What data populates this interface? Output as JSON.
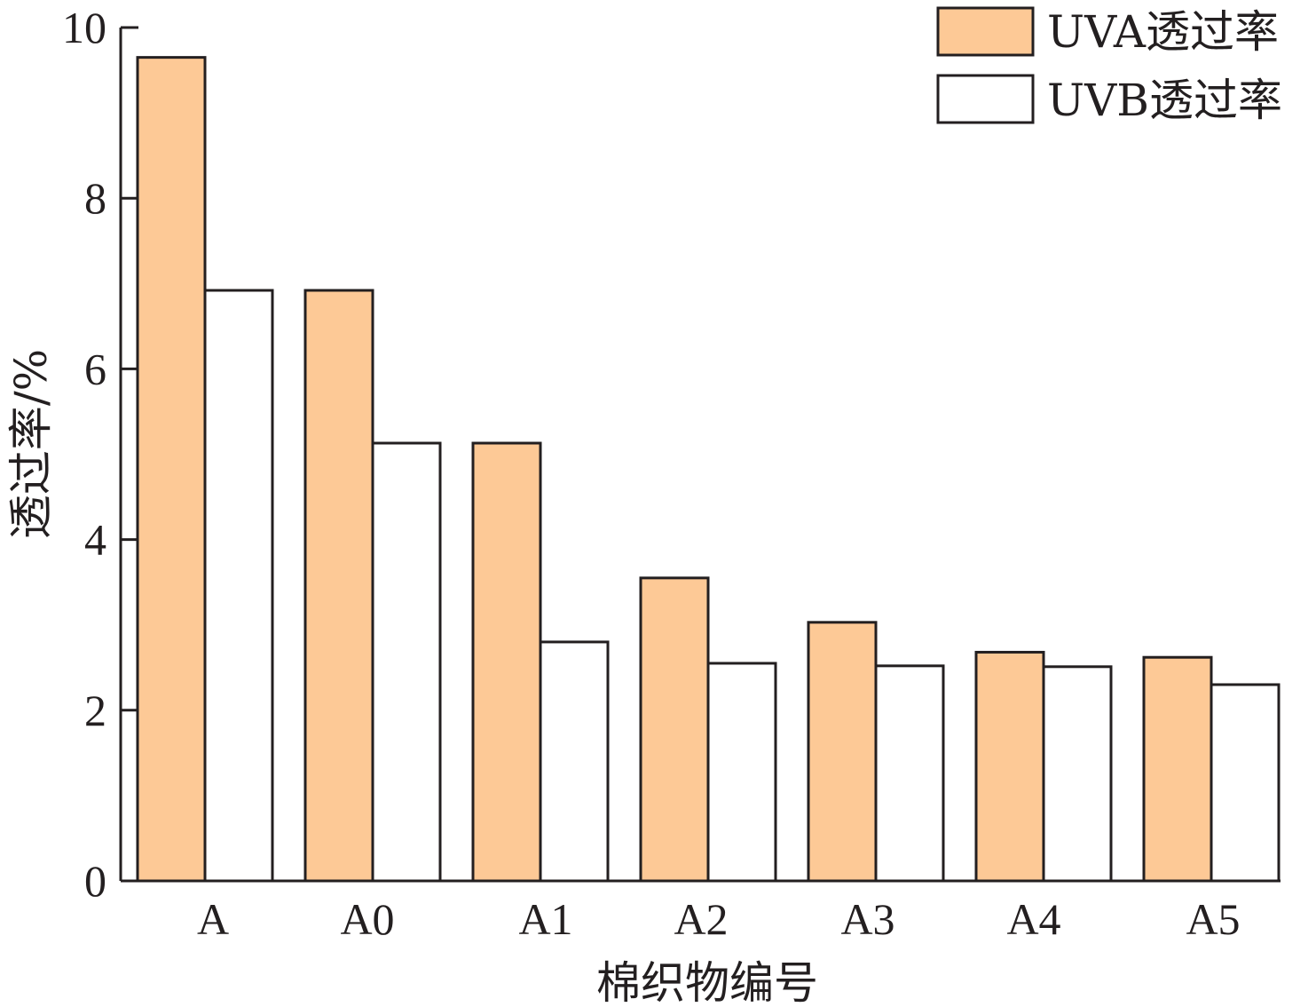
{
  "chart_data": {
    "type": "bar",
    "categories": [
      "A",
      "A0",
      "A1",
      "A2",
      "A3",
      "A4",
      "A5"
    ],
    "series": [
      {
        "name": "UVA透过率",
        "values": [
          9.65,
          6.92,
          5.13,
          3.55,
          3.03,
          2.68,
          2.62
        ],
        "color": "#fdc996"
      },
      {
        "name": "UVB透过率",
        "values": [
          6.92,
          5.13,
          2.8,
          2.55,
          2.52,
          2.51,
          2.3
        ],
        "color": "#ffffff"
      }
    ],
    "xlabel": "棉织物编号",
    "ylabel": "透过率/%",
    "ylim": [
      0,
      10
    ],
    "yticks": [
      "0",
      "2",
      "4",
      "6",
      "8",
      "10"
    ],
    "grid": false,
    "legend": "top-right"
  }
}
